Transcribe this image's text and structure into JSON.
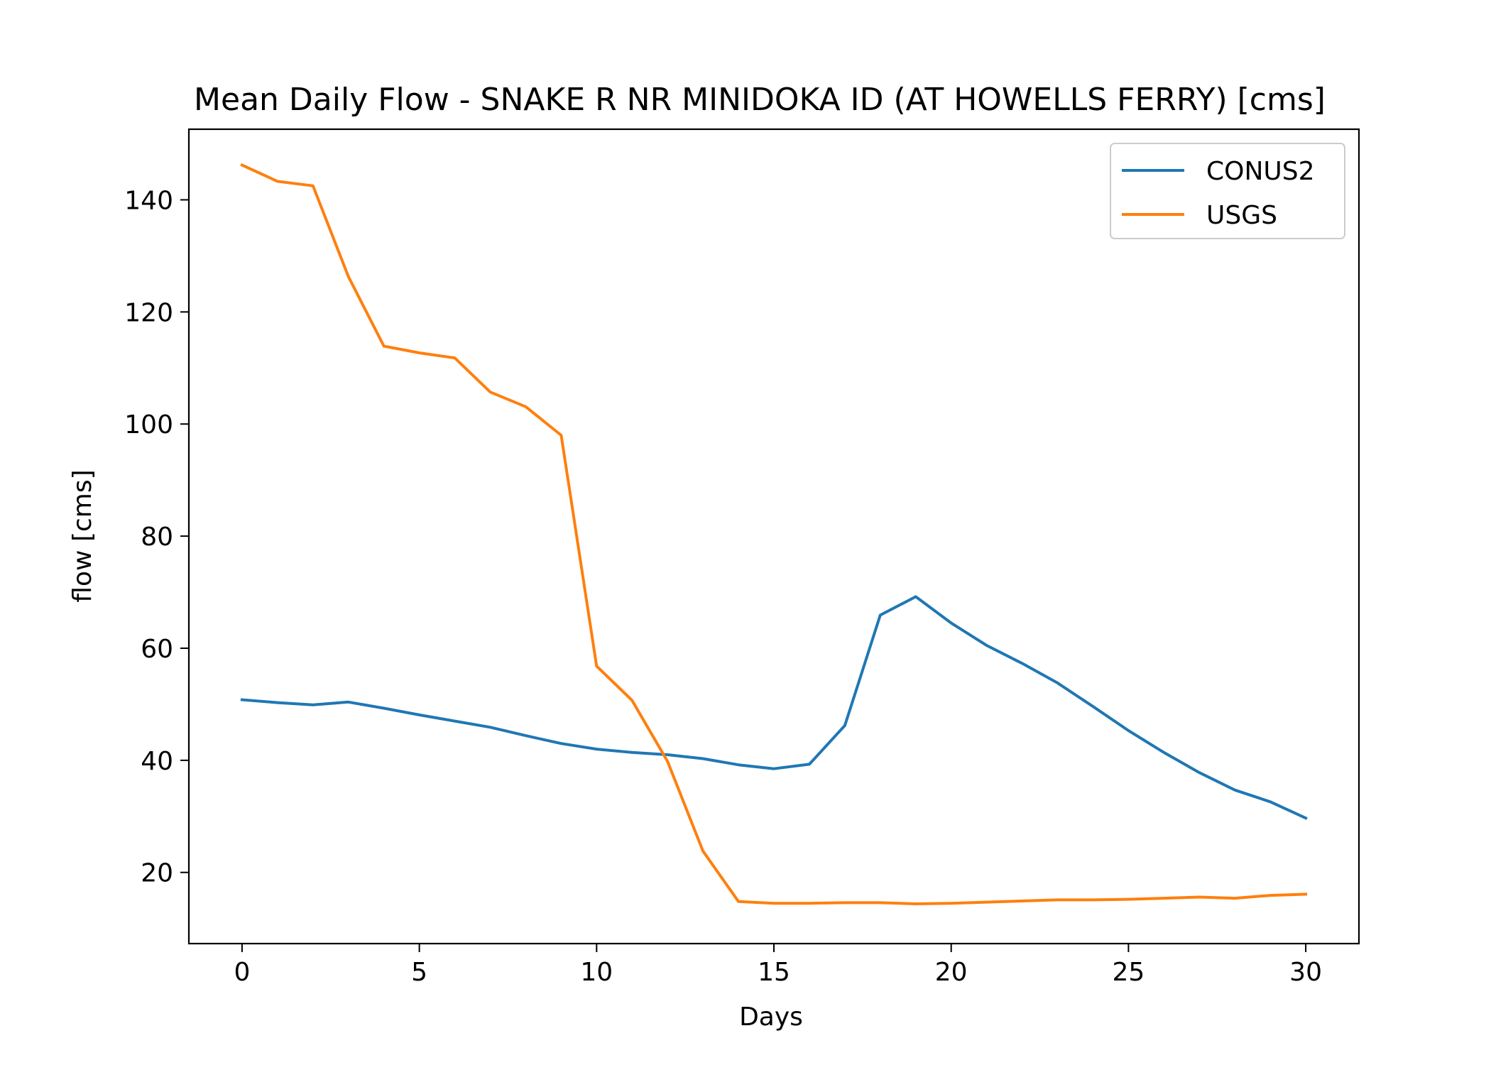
{
  "chart_data": {
    "type": "line",
    "title": "Mean Daily Flow - SNAKE R NR MINIDOKA ID (AT HOWELLS FERRY) [cms]",
    "xlabel": "Days",
    "ylabel": "flow [cms]",
    "xlim": [
      -1.5,
      31.5
    ],
    "ylim": [
      7.3,
      152.6
    ],
    "xticks": [
      0,
      5,
      10,
      15,
      20,
      25,
      30
    ],
    "yticks": [
      20,
      40,
      60,
      80,
      100,
      120,
      140
    ],
    "grid": false,
    "legend_position": "upper right",
    "x": [
      0,
      1,
      2,
      3,
      4,
      5,
      6,
      7,
      8,
      9,
      10,
      11,
      12,
      13,
      14,
      15,
      16,
      17,
      18,
      19,
      20,
      21,
      22,
      23,
      24,
      25,
      26,
      27,
      28,
      29,
      30
    ],
    "series": [
      {
        "name": "CONUS2",
        "color": "#1f77b4",
        "values": [
          50.8,
          50.3,
          49.9,
          50.4,
          49.3,
          48.1,
          47.0,
          45.9,
          44.4,
          43.0,
          42.0,
          41.4,
          41.0,
          40.3,
          39.2,
          38.5,
          39.3,
          46.2,
          65.9,
          69.2,
          64.5,
          60.5,
          57.3,
          53.8,
          49.6,
          45.3,
          41.4,
          37.8,
          34.7,
          32.6,
          29.7
        ]
      },
      {
        "name": "USGS",
        "color": "#ff7f0e",
        "values": [
          146.2,
          143.3,
          142.5,
          126.3,
          113.9,
          112.7,
          111.8,
          105.7,
          103.1,
          98.0,
          56.8,
          50.7,
          39.8,
          23.8,
          14.8,
          14.5,
          14.5,
          14.6,
          14.6,
          14.4,
          14.5,
          14.7,
          14.9,
          15.1,
          15.1,
          15.2,
          15.4,
          15.6,
          15.4,
          15.9,
          16.1
        ]
      }
    ]
  }
}
